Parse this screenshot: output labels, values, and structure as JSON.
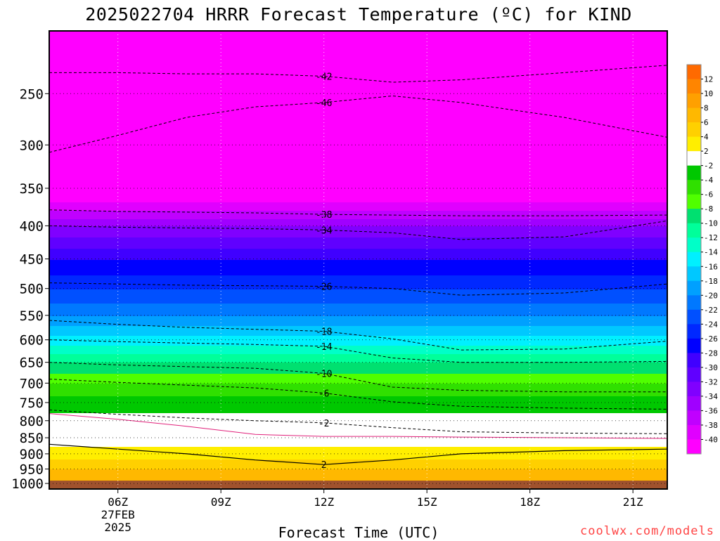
{
  "title": "2025022704 HRRR Forecast Temperature (ºC) for KIND",
  "xlabel": "Forecast Time (UTC)",
  "credit": "coolwx.com/models",
  "chart_data": {
    "type": "contour-cross-section",
    "title": "2025022704 HRRR Forecast Temperature (ºC) for KIND",
    "xlabel": "Forecast Time (UTC)",
    "ylabel": "",
    "x_hours": [
      4,
      5,
      6,
      7,
      8,
      9,
      10,
      11,
      12,
      13,
      14,
      15,
      16,
      17,
      18,
      19,
      20,
      21,
      22
    ],
    "x_range": [
      4,
      22
    ],
    "x_ticks": [
      {
        "hour": 6,
        "label": "06Z",
        "sub": [
          "27FEB",
          "2025"
        ]
      },
      {
        "hour": 9,
        "label": "09Z"
      },
      {
        "hour": 12,
        "label": "12Z"
      },
      {
        "hour": 15,
        "label": "15Z"
      },
      {
        "hour": 18,
        "label": "18Z"
      },
      {
        "hour": 21,
        "label": "21Z"
      }
    ],
    "pressure_range_hPa": [
      200,
      1020
    ],
    "y_ticks": [
      250,
      300,
      350,
      400,
      450,
      500,
      550,
      600,
      650,
      700,
      750,
      800,
      850,
      900,
      950,
      1000
    ],
    "pressure_scale": "log",
    "surface_pressure_hPa": 990,
    "surface_color": "#a0522d",
    "colorbar": {
      "ticks": [
        12,
        10,
        8,
        6,
        4,
        2,
        -2,
        -4,
        -6,
        -8,
        -10,
        -12,
        -14,
        -16,
        -18,
        -20,
        -22,
        -24,
        -26,
        -28,
        -30,
        -32,
        -34,
        -36,
        -38,
        -40
      ],
      "colors": [
        "#ff6a00",
        "#ff8500",
        "#ffa000",
        "#ffb800",
        "#ffd000",
        "#ffee00",
        "#ffffff",
        "#00c800",
        "#30e000",
        "#50ff00",
        "#00e070",
        "#00ff9a",
        "#00ffc8",
        "#00f0ff",
        "#00c8ff",
        "#00a0ff",
        "#0078ff",
        "#0050ff",
        "#0028ff",
        "#0000ff",
        "#4000ff",
        "#6000ff",
        "#8000ff",
        "#a000ff",
        "#c000ff",
        "#e000ff",
        "#ff00ff"
      ]
    },
    "temperature_profile_hPa_C": [
      [
        200,
        -52
      ],
      [
        250,
        -47
      ],
      [
        300,
        -46
      ],
      [
        350,
        -43
      ],
      [
        400,
        -34
      ],
      [
        450,
        -28
      ],
      [
        500,
        -24
      ],
      [
        550,
        -20
      ],
      [
        600,
        -15
      ],
      [
        650,
        -10
      ],
      [
        700,
        -6
      ],
      [
        750,
        -3
      ],
      [
        800,
        -1
      ],
      [
        850,
        1
      ],
      [
        900,
        3
      ],
      [
        950,
        6
      ],
      [
        1000,
        8
      ]
    ],
    "isotherms": [
      {
        "label": "-46",
        "p": [
          308,
          290,
          272,
          262,
          258,
          252,
          258,
          272,
          292
        ],
        "kind": "dashed"
      },
      {
        "label": "-42",
        "p": [
          232,
          232,
          233,
          233,
          235,
          240,
          238,
          232,
          226
        ],
        "kind": "dashed"
      },
      {
        "label": "-38",
        "p": [
          378,
          380,
          381,
          382,
          384,
          385,
          386,
          386,
          385
        ],
        "kind": "dashed"
      },
      {
        "label": "-34",
        "p": [
          400,
          402,
          403,
          404,
          406,
          410,
          420,
          416,
          393
        ],
        "kind": "dashed"
      },
      {
        "label": "-26",
        "p": [
          490,
          492,
          494,
          495,
          496,
          500,
          512,
          508,
          492
        ],
        "kind": "dashed"
      },
      {
        "label": "-18",
        "p": [
          560,
          568,
          574,
          578,
          582,
          598,
          622,
          620,
          603
        ],
        "kind": "dashed"
      },
      {
        "label": "-14",
        "p": [
          600,
          604,
          607,
          610,
          614,
          640,
          650,
          650,
          648
        ],
        "kind": "dashed"
      },
      {
        "label": "-10",
        "p": [
          650,
          656,
          660,
          664,
          676,
          710,
          718,
          722,
          722
        ],
        "kind": "dashed"
      },
      {
        "label": "-6",
        "p": [
          690,
          698,
          705,
          712,
          725,
          748,
          760,
          765,
          768
        ],
        "kind": "dashed"
      },
      {
        "label": "-2",
        "p": [
          770,
          782,
          792,
          800,
          806,
          820,
          832,
          836,
          838
        ],
        "kind": "dashed"
      },
      {
        "label": "0",
        "p": [
          780,
          796,
          816,
          840,
          846,
          846,
          848,
          850,
          852
        ],
        "kind": "magenta"
      },
      {
        "label": "2",
        "p": [
          870,
          885,
          900,
          920,
          935,
          920,
          900,
          890,
          885
        ],
        "kind": "solid"
      }
    ],
    "isotherm_hours": [
      4,
      6,
      8,
      10,
      12,
      14,
      16,
      19,
      22
    ],
    "grid": true,
    "legend": "right"
  }
}
